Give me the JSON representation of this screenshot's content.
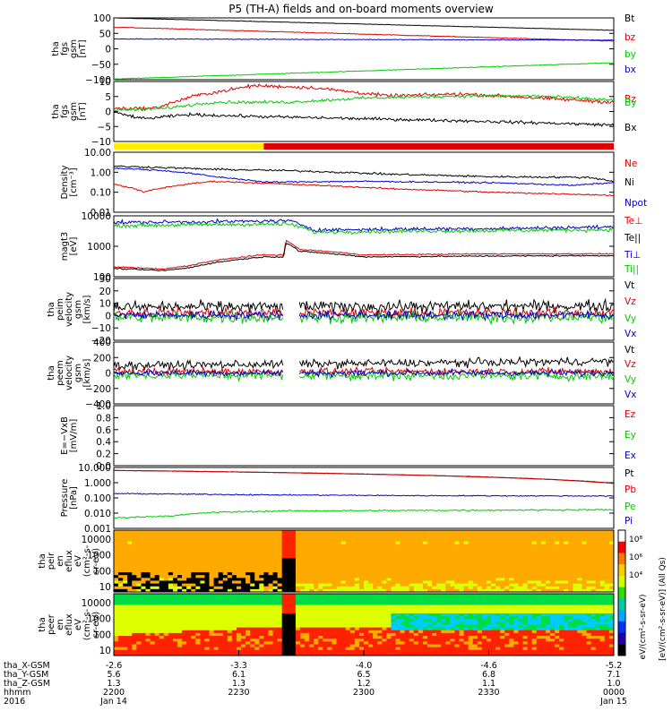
{
  "title": "P5 (TH-A) fields and on-board moments overview",
  "time_axis": {
    "ticks": [
      "2200",
      "2230",
      "2300",
      "2330",
      "0000"
    ],
    "date_left": "Jan 14",
    "date_right": "Jan 15",
    "year": "2016",
    "rows": [
      {
        "label": "tha_X-GSM",
        "values": [
          "-2.6",
          "-3.3",
          "-4.0",
          "-4.6",
          "-5.2"
        ]
      },
      {
        "label": "tha_Y-GSM",
        "values": [
          "5.6",
          "6.1",
          "6.5",
          "6.8",
          "7.1"
        ]
      },
      {
        "label": "tha_Z-GSM",
        "values": [
          "1.3",
          "1.3",
          "1.2",
          "1.1",
          "1.0"
        ]
      },
      {
        "label": "hhmm",
        "values": [
          "2200",
          "2230",
          "2300",
          "2330",
          "0000"
        ]
      }
    ]
  },
  "colorbar": {
    "ticks": [
      "10⁸",
      "10⁶",
      "10⁴"
    ],
    "label": "[eV/(cm²-s-sr-eV)] (All Qs)",
    "label_peer": "eV/(cm²-s-sr-eV)"
  },
  "colors": {
    "black": "#000000",
    "red": "#dd0000",
    "green": "#00cc00",
    "blue": "#0000cc",
    "yellow": "#ffee00"
  },
  "chart_data": [
    {
      "type": "line",
      "panel": "fgs_gsm_1",
      "ylabel_lines": [
        "tha",
        "fgs",
        "gsm",
        "[nT]"
      ],
      "yticks": [
        "100",
        "50",
        "0",
        "−50",
        "−100"
      ],
      "ylim": [
        -100,
        100
      ],
      "series": [
        {
          "name": "Bt",
          "color": "black",
          "start": 100,
          "end": 60,
          "noise": 0.6
        },
        {
          "name": "bz",
          "color": "red",
          "start": 70,
          "end": 25,
          "noise": 1
        },
        {
          "name": "by",
          "color": "green",
          "start": -98,
          "end": -45,
          "noise": 1
        },
        {
          "name": "bx",
          "color": "blue",
          "start": 32,
          "end": 28,
          "noise": 1
        }
      ]
    },
    {
      "type": "line",
      "panel": "fgs_gsm_2",
      "ylabel_lines": [
        "tha",
        "fgs",
        "gsm",
        "[nT]"
      ],
      "yticks": [
        "10",
        "5",
        "0",
        "−5",
        "−10"
      ],
      "ylim": [
        -14,
        15
      ],
      "series": [
        {
          "name": "Bz",
          "color": "red",
          "points": [
            [
              0,
              2
            ],
            [
              0.08,
              2
            ],
            [
              0.16,
              8
            ],
            [
              0.28,
              13
            ],
            [
              0.4,
              12
            ],
            [
              0.55,
              8
            ],
            [
              0.7,
              9
            ],
            [
              0.85,
              7
            ],
            [
              1,
              5
            ]
          ],
          "noise": 0.7
        },
        {
          "name": "By",
          "color": "green",
          "points": [
            [
              0,
              1
            ],
            [
              0.1,
              2
            ],
            [
              0.2,
              5
            ],
            [
              0.35,
              5
            ],
            [
              0.5,
              7
            ],
            [
              0.7,
              8
            ],
            [
              0.85,
              8
            ],
            [
              1,
              6
            ]
          ],
          "noise": 0.6
        },
        {
          "name": "Bx",
          "color": "black",
          "points": [
            [
              0,
              0
            ],
            [
              0.06,
              -3
            ],
            [
              0.15,
              -1
            ],
            [
              0.3,
              -2
            ],
            [
              0.5,
              -3
            ],
            [
              0.7,
              -4
            ],
            [
              0.85,
              -5
            ],
            [
              1,
              -6
            ]
          ],
          "noise": 0.6
        }
      ],
      "mode_bar": [
        {
          "from": 0,
          "to": 0.3,
          "color": "yellow"
        },
        {
          "from": 0.3,
          "to": 1,
          "color": "red"
        }
      ]
    },
    {
      "type": "line",
      "panel": "density",
      "ylabel_lines": [
        "Density",
        "[cm⁻³]"
      ],
      "yticks": [
        "10.00",
        "1.00",
        "0.10",
        "0.01"
      ],
      "ylim": [
        -2,
        1
      ],
      "ylog": true,
      "series": [
        {
          "name": "Ne",
          "color": "red",
          "points": [
            [
              0,
              0.25
            ],
            [
              0.06,
              0.1
            ],
            [
              0.13,
              0.22
            ],
            [
              0.2,
              0.35
            ],
            [
              0.35,
              0.25
            ],
            [
              0.55,
              0.15
            ],
            [
              0.75,
              0.1
            ],
            [
              1,
              0.07
            ]
          ],
          "noise": 0.03
        },
        {
          "name": "Ni",
          "color": "black",
          "points": [
            [
              0,
              2
            ],
            [
              0.2,
              1.4
            ],
            [
              0.35,
              1.2
            ],
            [
              0.55,
              0.8
            ],
            [
              0.75,
              0.6
            ],
            [
              0.95,
              0.55
            ],
            [
              1,
              0.35
            ]
          ],
          "noise": 0.04
        },
        {
          "name": "Npot",
          "color": "blue",
          "points": [
            [
              0,
              1.6
            ],
            [
              0.1,
              1.2
            ],
            [
              0.2,
              0.6
            ],
            [
              0.3,
              0.32
            ],
            [
              0.5,
              0.35
            ],
            [
              0.75,
              0.3
            ],
            [
              0.92,
              0.22
            ],
            [
              1,
              0.3
            ]
          ],
          "noise": 0.03
        }
      ]
    },
    {
      "type": "line",
      "panel": "temperature",
      "ylabel_lines": [
        "magt3",
        "[eV]"
      ],
      "yticks": [
        "10000",
        "1000",
        "100"
      ],
      "ylim": [
        1.6,
        4.05
      ],
      "ylog": true,
      "series": [
        {
          "name": "Te⊥",
          "color": "red",
          "points": [
            [
              0,
              100
            ],
            [
              0.1,
              80
            ],
            [
              0.15,
              110
            ],
            [
              0.3,
              300
            ],
            [
              0.34,
              300
            ],
            [
              0.345,
              1100
            ],
            [
              0.37,
              500
            ],
            [
              0.5,
              300
            ],
            [
              0.75,
              330
            ],
            [
              1,
              330
            ]
          ],
          "noise": 0.02
        },
        {
          "name": "Te||",
          "color": "black",
          "points": [
            [
              0,
              85
            ],
            [
              0.1,
              70
            ],
            [
              0.15,
              90
            ],
            [
              0.3,
              250
            ],
            [
              0.34,
              250
            ],
            [
              0.345,
              900
            ],
            [
              0.37,
              420
            ],
            [
              0.5,
              250
            ],
            [
              0.75,
              270
            ],
            [
              1,
              280
            ]
          ],
          "noise": 0.02
        },
        {
          "name": "Ti⊥",
          "color": "blue",
          "points": [
            [
              0,
              6000
            ],
            [
              0.2,
              6500
            ],
            [
              0.35,
              7000
            ],
            [
              0.4,
              3000
            ],
            [
              0.6,
              3300
            ],
            [
              0.8,
              3500
            ],
            [
              1,
              4000
            ]
          ],
          "noise": 0.06
        },
        {
          "name": "Ti||",
          "color": "green",
          "points": [
            [
              0,
              4500
            ],
            [
              0.2,
              5000
            ],
            [
              0.35,
              5200
            ],
            [
              0.4,
              2500
            ],
            [
              0.6,
              2700
            ],
            [
              0.8,
              2900
            ],
            [
              1,
              3100
            ]
          ],
          "noise": 0.06
        }
      ]
    },
    {
      "type": "line",
      "panel": "peim_velocity",
      "ylabel_lines": [
        "tha",
        "peim",
        "velocity",
        "gsm",
        "[km/s]"
      ],
      "yticks": [
        "30",
        "20",
        "10",
        "0",
        "−10",
        "−20"
      ],
      "ylim": [
        -22,
        32
      ],
      "series": [
        {
          "name": "Vt",
          "color": "black",
          "start": 7,
          "end": 8,
          "noise": 4
        },
        {
          "name": "Vz",
          "color": "red",
          "start": 2,
          "end": 2,
          "noise": 3.5
        },
        {
          "name": "Vy",
          "color": "green",
          "start": -2,
          "end": -2,
          "noise": 4
        },
        {
          "name": "Vx",
          "color": "blue",
          "start": 0,
          "end": 0,
          "noise": 3
        }
      ],
      "gap": [
        0.34,
        0.37
      ]
    },
    {
      "type": "line",
      "panel": "peem_velocity",
      "ylabel_lines": [
        "tha",
        "peem",
        "velocity",
        "gsm",
        "[km/s]"
      ],
      "yticks": [
        "400",
        "200",
        "0",
        "−200",
        "−400"
      ],
      "ylim": [
        -420,
        420
      ],
      "series": [
        {
          "name": "Vt",
          "color": "black",
          "start": 100,
          "end": 160,
          "noise": 45
        },
        {
          "name": "Vz",
          "color": "red",
          "start": 20,
          "end": 20,
          "noise": 40
        },
        {
          "name": "Vy",
          "color": "green",
          "start": -30,
          "end": -40,
          "noise": 50
        },
        {
          "name": "Vx",
          "color": "blue",
          "start": 0,
          "end": 0,
          "noise": 35
        }
      ],
      "gap": [
        0.34,
        0.37
      ]
    },
    {
      "type": "line",
      "panel": "efield",
      "ylabel_lines": [
        "E=−VxB",
        "[mV/m]"
      ],
      "yticks": [
        "1.0",
        "0.8",
        "0.6",
        "0.4",
        "0.2",
        "0.0"
      ],
      "ylim": [
        0,
        1
      ],
      "series": [
        {
          "name": "Ez",
          "color": "red"
        },
        {
          "name": "Ey",
          "color": "green"
        },
        {
          "name": "Ex",
          "color": "blue"
        }
      ]
    },
    {
      "type": "line",
      "panel": "pressure",
      "ylabel_lines": [
        "Pressure",
        "[nPa]"
      ],
      "yticks": [
        "10.000",
        "1.000",
        "0.100",
        "0.010",
        "0.001"
      ],
      "ylim": [
        -3,
        1.1
      ],
      "ylog": true,
      "series": [
        {
          "name": "Pt",
          "color": "black",
          "points": [
            [
              0,
              8
            ],
            [
              1,
              1.1
            ]
          ],
          "noise": 0.01
        },
        {
          "name": "Pb",
          "color": "red",
          "points": [
            [
              0,
              8
            ],
            [
              1,
              1.05
            ]
          ],
          "noise": 0.01
        },
        {
          "name": "Pe",
          "color": "green",
          "points": [
            [
              0,
              0.005
            ],
            [
              0.12,
              0.007
            ],
            [
              0.2,
              0.012
            ],
            [
              0.35,
              0.015
            ],
            [
              0.6,
              0.016
            ],
            [
              1,
              0.018
            ]
          ],
          "noise": 0.04
        },
        {
          "name": "Pi",
          "color": "blue",
          "points": [
            [
              0,
              0.22
            ],
            [
              0.3,
              0.18
            ],
            [
              0.6,
              0.16
            ],
            [
              1,
              0.15
            ]
          ],
          "noise": 0.03
        }
      ]
    },
    {
      "type": "heatmap",
      "panel": "peir_eflux",
      "ylabel_lines": [
        "tha",
        "peir",
        "en",
        "eflux",
        "eV",
        "(cm²-s-",
        "sr-eV)"
      ],
      "yticks": [
        "10000",
        "1000",
        "100",
        "10"
      ]
    },
    {
      "type": "heatmap",
      "panel": "peer_eflux",
      "ylabel_lines": [
        "tha",
        "peer",
        "en",
        "eflux",
        "eV",
        "(cm²-s-",
        "sr-eV)"
      ],
      "yticks": [
        "10000",
        "1000",
        "100",
        "10"
      ]
    }
  ]
}
